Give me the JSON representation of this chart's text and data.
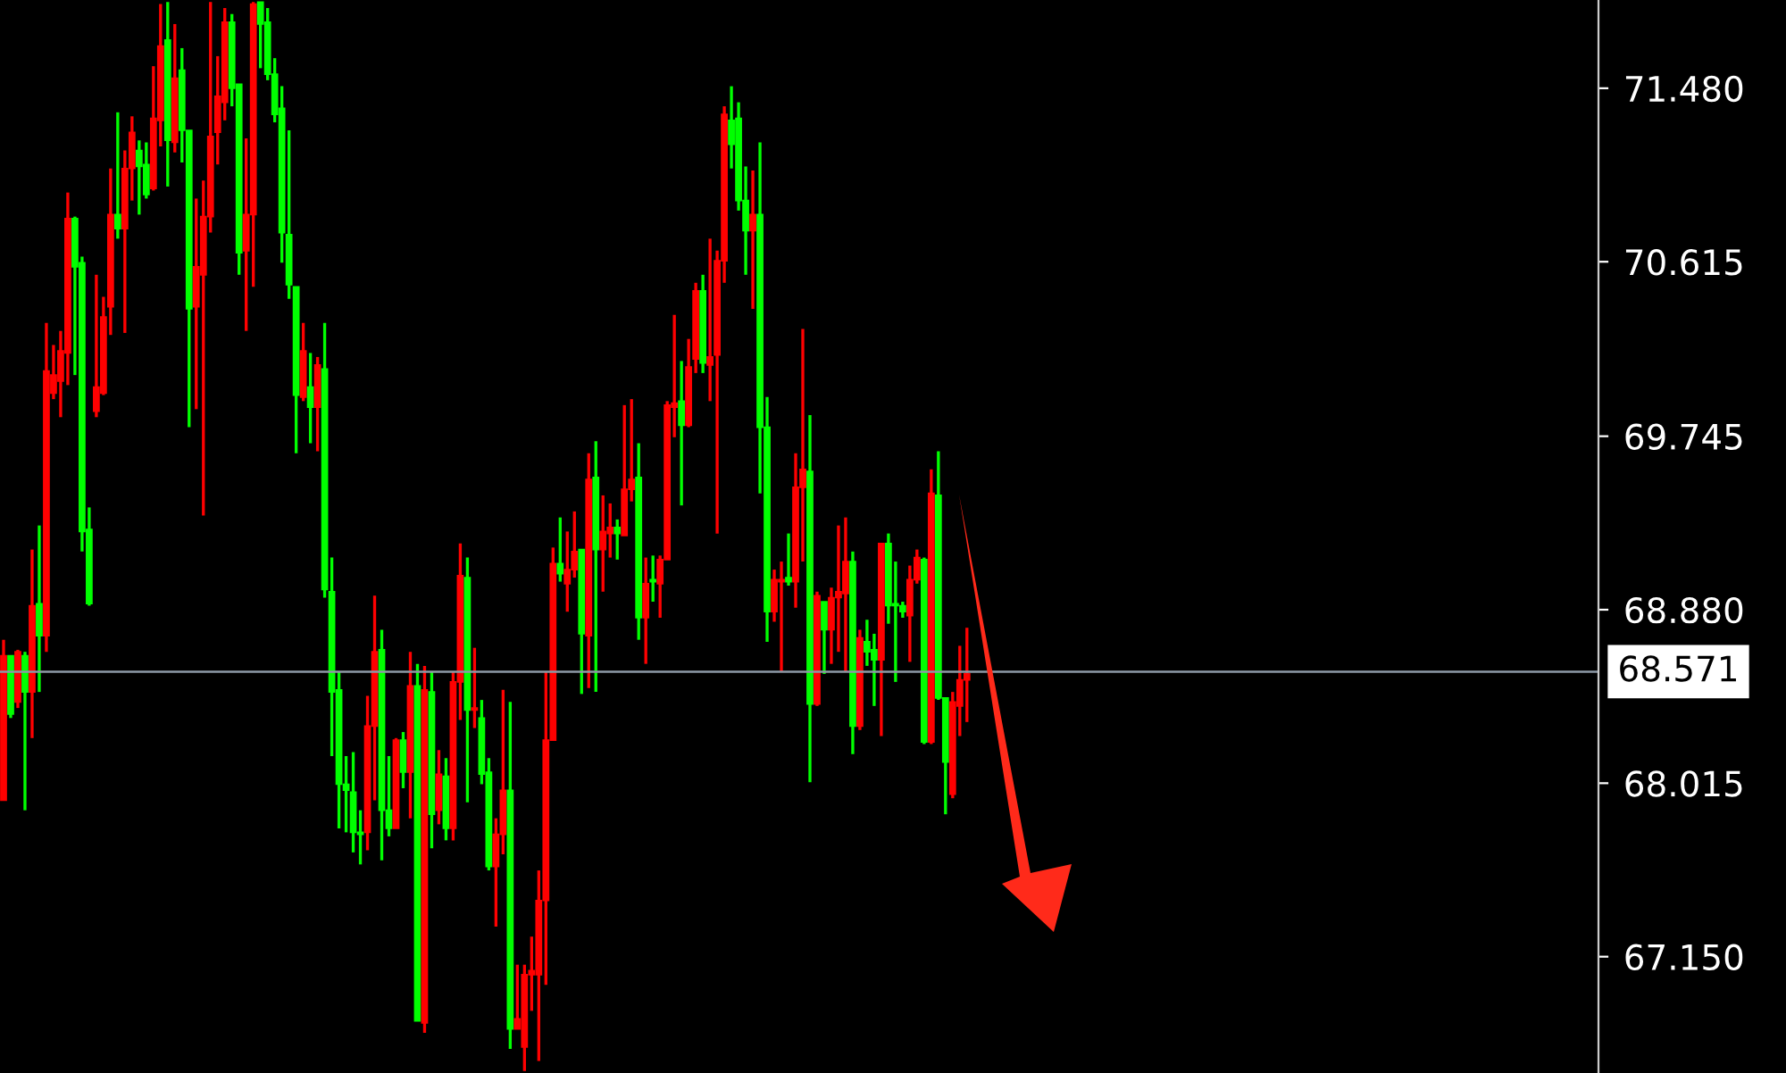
{
  "chart_data": {
    "type": "candlestick",
    "categories": [
      null,
      null,
      null,
      null,
      null,
      null,
      null,
      null,
      null,
      null,
      null,
      null,
      null,
      null,
      null,
      null,
      null,
      null,
      null,
      null,
      null,
      null,
      null,
      null,
      null,
      null,
      null,
      null,
      null,
      null,
      null,
      null,
      null,
      null,
      null,
      null,
      null,
      null,
      null,
      null,
      null,
      null,
      null,
      null,
      null,
      null,
      null,
      null,
      null,
      null,
      null,
      null,
      null,
      null,
      null,
      null,
      null,
      null,
      null,
      null,
      null,
      null,
      null,
      null,
      null,
      null,
      null,
      null,
      null,
      null,
      null,
      null,
      null,
      null,
      null,
      null,
      null,
      null,
      null,
      null,
      null,
      null,
      null,
      null,
      null,
      null,
      null,
      null,
      null,
      null,
      null,
      null,
      null,
      null,
      null,
      null,
      null,
      null,
      null,
      null,
      null,
      null,
      null,
      null,
      null,
      null,
      null,
      null,
      null,
      null,
      null,
      null,
      null,
      null,
      null,
      null,
      null,
      null,
      null,
      null,
      null,
      null,
      null,
      null,
      null,
      null,
      null,
      null,
      null,
      null,
      null,
      null,
      null,
      null,
      null,
      null,
      null,
      null,
      null,
      null,
      null,
      null,
      null,
      null,
      null,
      null,
      null,
      null,
      null,
      null,
      null,
      null,
      null,
      null,
      null,
      null,
      null,
      null,
      null,
      null,
      null,
      null,
      null,
      null,
      null,
      null,
      null,
      null,
      null,
      null,
      null,
      null,
      null,
      null,
      null,
      null,
      null,
      null,
      null,
      null,
      null,
      null,
      null,
      null,
      null,
      null,
      null,
      null,
      null,
      null,
      null,
      null,
      null,
      null,
      null,
      null,
      null,
      null,
      null,
      null,
      null,
      null,
      null,
      null,
      null,
      null,
      null,
      null,
      null,
      null,
      null,
      null,
      null,
      null,
      null,
      null,
      null,
      null,
      null,
      null,
      null,
      null,
      null,
      null
    ],
    "ohlc": [
      [
        67.93,
        68.73,
        67.93,
        68.65
      ],
      [
        68.65,
        68.65,
        68.34,
        68.36
      ],
      [
        68.42,
        68.68,
        68.39,
        68.67
      ],
      [
        68.65,
        68.67,
        67.88,
        68.47
      ],
      [
        68.47,
        69.18,
        68.24,
        68.9
      ],
      [
        68.91,
        69.3,
        68.47,
        68.75
      ],
      [
        68.75,
        70.31,
        68.67,
        70.07
      ],
      [
        69.96,
        70.2,
        69.93,
        70.05
      ],
      [
        70.02,
        70.27,
        69.84,
        70.17
      ],
      [
        70.16,
        70.96,
        70.0,
        70.83
      ],
      [
        70.83,
        70.84,
        70.05,
        70.59
      ],
      [
        70.61,
        70.64,
        69.17,
        69.27
      ],
      [
        69.28,
        69.39,
        68.9,
        68.91
      ],
      [
        69.87,
        70.55,
        69.84,
        69.99
      ],
      [
        69.96,
        70.44,
        69.95,
        70.34
      ],
      [
        70.39,
        71.08,
        70.25,
        70.85
      ],
      [
        70.85,
        71.36,
        70.73,
        70.78
      ],
      [
        70.78,
        71.17,
        70.26,
        71.08
      ],
      [
        71.08,
        71.34,
        70.92,
        71.26
      ],
      [
        71.17,
        71.22,
        70.85,
        71.09
      ],
      [
        71.1,
        71.21,
        70.93,
        70.95
      ],
      [
        70.98,
        71.59,
        70.97,
        71.33
      ],
      [
        71.32,
        71.9,
        71.19,
        71.69
      ],
      [
        71.72,
        71.91,
        70.99,
        71.22
      ],
      [
        71.21,
        71.8,
        71.16,
        71.53
      ],
      [
        71.57,
        71.68,
        71.11,
        71.27
      ],
      [
        71.27,
        71.27,
        69.79,
        70.38
      ],
      [
        70.39,
        70.93,
        69.88,
        70.59
      ],
      [
        70.55,
        71.02,
        69.35,
        70.84
      ],
      [
        70.84,
        71.91,
        70.76,
        71.24
      ],
      [
        71.26,
        71.64,
        71.1,
        71.44
      ],
      [
        71.41,
        71.88,
        71.32,
        71.81
      ],
      [
        71.81,
        71.85,
        71.39,
        71.48
      ],
      [
        71.5,
        71.5,
        70.55,
        70.66
      ],
      [
        70.67,
        71.23,
        70.27,
        70.85
      ],
      [
        70.85,
        71.91,
        70.49,
        71.9
      ],
      [
        71.91,
        71.91,
        71.58,
        71.8
      ],
      [
        71.81,
        71.88,
        71.52,
        71.55
      ],
      [
        71.55,
        71.63,
        71.31,
        71.35
      ],
      [
        71.38,
        71.49,
        70.61,
        70.76
      ],
      [
        70.75,
        71.27,
        70.43,
        70.5
      ],
      [
        70.49,
        70.49,
        69.66,
        69.95
      ],
      [
        69.94,
        70.31,
        69.92,
        70.17
      ],
      [
        69.99,
        70.16,
        69.71,
        69.89
      ],
      [
        69.89,
        70.14,
        69.67,
        70.1
      ],
      [
        70.08,
        70.31,
        68.94,
        68.98
      ],
      [
        68.97,
        69.14,
        68.15,
        68.47
      ],
      [
        68.48,
        68.57,
        67.79,
        68.01
      ],
      [
        68.01,
        68.15,
        67.77,
        67.98
      ],
      [
        67.97,
        68.17,
        67.67,
        67.77
      ],
      [
        67.77,
        67.88,
        67.61,
        67.76
      ],
      [
        67.77,
        68.45,
        67.68,
        68.3
      ],
      [
        68.3,
        68.95,
        67.93,
        68.67
      ],
      [
        68.68,
        68.78,
        67.63,
        67.88
      ],
      [
        67.88,
        68.15,
        67.75,
        67.79
      ],
      [
        67.79,
        68.24,
        67.79,
        68.23
      ],
      [
        68.23,
        68.27,
        67.99,
        68.07
      ],
      [
        68.07,
        68.67,
        67.84,
        68.5
      ],
      [
        68.5,
        68.61,
        66.83,
        66.83
      ],
      [
        66.82,
        68.6,
        66.77,
        68.48
      ],
      [
        68.47,
        68.57,
        67.69,
        67.86
      ],
      [
        67.88,
        68.18,
        67.81,
        68.06
      ],
      [
        68.05,
        68.14,
        67.73,
        67.79
      ],
      [
        67.79,
        68.57,
        67.73,
        68.52
      ],
      [
        68.52,
        69.21,
        68.33,
        69.05
      ],
      [
        69.04,
        69.14,
        67.92,
        68.38
      ],
      [
        68.38,
        68.69,
        68.29,
        68.39
      ],
      [
        68.34,
        68.43,
        68.01,
        68.06
      ],
      [
        68.07,
        68.14,
        67.58,
        67.6
      ],
      [
        67.6,
        67.84,
        67.3,
        67.76
      ],
      [
        67.76,
        68.48,
        67.66,
        67.98
      ],
      [
        67.98,
        68.42,
        66.69,
        66.79
      ],
      [
        66.79,
        67.11,
        66.79,
        66.84
      ],
      [
        66.7,
        67.11,
        66.58,
        67.06
      ],
      [
        67.06,
        67.25,
        66.88,
        67.08
      ],
      [
        67.06,
        67.58,
        66.63,
        67.43
      ],
      [
        67.43,
        68.57,
        67.01,
        68.23
      ],
      [
        68.23,
        69.19,
        68.23,
        69.11
      ],
      [
        69.11,
        69.34,
        69.02,
        69.06
      ],
      [
        69.01,
        69.27,
        68.87,
        69.08
      ],
      [
        69.08,
        69.37,
        69.04,
        69.17
      ],
      [
        69.18,
        69.18,
        68.46,
        68.76
      ],
      [
        68.75,
        69.66,
        68.49,
        69.53
      ],
      [
        69.54,
        69.72,
        68.47,
        69.18
      ],
      [
        69.18,
        69.45,
        68.97,
        69.27
      ],
      [
        69.26,
        69.41,
        69.14,
        69.29
      ],
      [
        69.29,
        69.33,
        69.13,
        69.26
      ],
      [
        69.25,
        69.9,
        69.25,
        69.48
      ],
      [
        69.48,
        69.93,
        69.42,
        69.53
      ],
      [
        69.54,
        69.71,
        68.73,
        68.84
      ],
      [
        68.84,
        69.14,
        68.61,
        69.01
      ],
      [
        69.03,
        69.15,
        68.92,
        69.02
      ],
      [
        69.01,
        69.15,
        68.84,
        69.13
      ],
      [
        69.13,
        69.92,
        69.13,
        69.9
      ],
      [
        69.89,
        70.35,
        69.74,
        69.91
      ],
      [
        69.92,
        70.12,
        69.4,
        69.8
      ],
      [
        69.8,
        70.23,
        69.79,
        70.09
      ],
      [
        70.13,
        70.51,
        70.06,
        70.47
      ],
      [
        70.47,
        70.55,
        70.06,
        70.11
      ],
      [
        70.1,
        70.73,
        69.92,
        70.14
      ],
      [
        70.15,
        70.67,
        69.26,
        70.62
      ],
      [
        70.62,
        71.39,
        70.51,
        71.35
      ],
      [
        71.32,
        71.49,
        71.08,
        71.2
      ],
      [
        71.33,
        71.41,
        70.87,
        70.92
      ],
      [
        70.92,
        71.09,
        70.55,
        70.77
      ],
      [
        70.77,
        71.07,
        70.38,
        70.85
      ],
      [
        70.85,
        71.21,
        69.46,
        69.79
      ],
      [
        69.79,
        69.94,
        68.72,
        68.87
      ],
      [
        68.87,
        69.08,
        68.82,
        69.03
      ],
      [
        69.02,
        69.12,
        68.57,
        69.03
      ],
      [
        69.04,
        69.26,
        69.0,
        69.02
      ],
      [
        69.02,
        69.66,
        68.89,
        69.49
      ],
      [
        69.49,
        70.28,
        69.12,
        69.58
      ],
      [
        69.57,
        69.85,
        68.02,
        68.41
      ],
      [
        68.41,
        68.97,
        68.4,
        68.95
      ],
      [
        68.92,
        68.92,
        68.56,
        68.78
      ],
      [
        68.78,
        68.99,
        68.61,
        68.94
      ],
      [
        68.94,
        69.3,
        68.67,
        68.97
      ],
      [
        68.96,
        69.34,
        68.57,
        69.12
      ],
      [
        69.12,
        69.17,
        68.16,
        68.3
      ],
      [
        68.3,
        68.78,
        68.28,
        68.74
      ],
      [
        68.72,
        68.83,
        68.6,
        68.67
      ],
      [
        68.68,
        68.76,
        68.4,
        68.63
      ],
      [
        68.63,
        69.21,
        68.25,
        69.21
      ],
      [
        69.21,
        69.26,
        68.81,
        68.9
      ],
      [
        68.91,
        69.12,
        68.52,
        68.9
      ],
      [
        68.9,
        68.92,
        68.84,
        68.87
      ],
      [
        68.85,
        69.1,
        68.62,
        69.03
      ],
      [
        69.03,
        69.18,
        69.01,
        69.14
      ],
      [
        69.13,
        69.14,
        68.21,
        68.22
      ],
      [
        68.22,
        69.58,
        68.21,
        69.46
      ],
      [
        69.45,
        69.67,
        68.43,
        68.44
      ],
      [
        68.44,
        68.44,
        67.86,
        68.12
      ],
      [
        67.96,
        68.47,
        67.94,
        68.42
      ],
      [
        68.4,
        68.7,
        68.25,
        68.53
      ],
      [
        68.53,
        68.79,
        68.32,
        68.56
      ],
      null,
      null,
      null,
      null,
      null,
      null,
      null,
      null,
      null,
      null,
      null,
      null,
      null,
      null,
      null,
      null,
      null,
      null,
      null,
      null,
      null,
      null,
      null,
      null,
      null,
      null,
      null,
      null,
      null,
      null,
      null,
      null,
      null,
      null,
      null,
      null,
      null,
      null,
      null,
      null,
      null,
      null,
      null,
      null,
      null,
      null,
      null,
      null,
      null,
      null,
      null,
      null,
      null,
      null,
      null,
      null,
      null,
      null,
      null,
      null,
      null,
      null,
      null,
      null,
      null,
      null,
      null,
      null,
      null,
      null,
      null,
      null,
      null,
      null,
      null,
      null,
      null,
      null,
      null,
      null,
      null,
      null,
      null,
      null,
      null,
      null,
      null,
      null
    ],
    "colors": [
      "#ff0000",
      "#00ff00",
      "#ff0000",
      "#00ff00",
      "#ff0000",
      "#00ff00",
      "#ff0000",
      "#ff0000",
      "#ff0000",
      "#ff0000",
      "#00ff00",
      "#00ff00",
      "#00ff00",
      "#ff0000",
      "#ff0000",
      "#ff0000",
      "#00ff00",
      "#ff0000",
      "#ff0000",
      "#00ff00",
      "#00ff00",
      "#ff0000",
      "#ff0000",
      "#00ff00",
      "#ff0000",
      "#00ff00",
      "#00ff00",
      "#ff0000",
      "#ff0000",
      "#ff0000",
      "#ff0000",
      "#ff0000",
      "#00ff00",
      "#00ff00",
      "#ff0000",
      "#ff0000",
      "#00ff00",
      "#00ff00",
      "#00ff00",
      "#00ff00",
      "#00ff00",
      "#00ff00",
      "#ff0000",
      "#00ff00",
      "#ff0000",
      "#00ff00",
      "#00ff00",
      "#00ff00",
      "#00ff00",
      "#00ff00",
      "#00ff00",
      "#ff0000",
      "#ff0000",
      "#00ff00",
      "#00ff00",
      "#ff0000",
      "#00ff00",
      "#ff0000",
      "#00ff00",
      "#ff0000",
      "#00ff00",
      "#ff0000",
      "#00ff00",
      "#ff0000",
      "#ff0000",
      "#00ff00",
      "#ff0000",
      "#00ff00",
      "#00ff00",
      "#ff0000",
      "#ff0000",
      "#00ff00",
      "#ff0000",
      "#ff0000",
      "#ff0000",
      "#ff0000",
      "#ff0000",
      "#ff0000",
      "#00ff00",
      "#ff0000",
      "#ff0000",
      "#00ff00",
      "#ff0000",
      "#00ff00",
      "#ff0000",
      "#ff0000",
      "#00ff00",
      "#ff0000",
      "#ff0000",
      "#00ff00",
      "#ff0000",
      "#00ff00",
      "#ff0000",
      "#ff0000",
      "#ff0000",
      "#00ff00",
      "#ff0000",
      "#ff0000",
      "#00ff00",
      "#ff0000",
      "#ff0000",
      "#ff0000",
      "#00ff00",
      "#00ff00",
      "#00ff00",
      "#ff0000",
      "#00ff00",
      "#00ff00",
      "#ff0000",
      "#ff0000",
      "#00ff00",
      "#ff0000",
      "#ff0000",
      "#00ff00",
      "#ff0000",
      "#00ff00",
      "#ff0000",
      "#ff0000",
      "#ff0000",
      "#00ff00",
      "#ff0000",
      "#00ff00",
      "#00ff00",
      "#ff0000",
      "#00ff00",
      "#00ff00",
      "#00ff00",
      "#ff0000",
      "#ff0000",
      "#00ff00",
      "#ff0000",
      "#00ff00",
      "#00ff00",
      "#ff0000",
      "#ff0000",
      "#ff0000",
      null,
      null,
      null,
      null,
      null,
      null,
      null,
      null,
      null,
      null,
      null,
      null,
      null,
      null,
      null,
      null,
      null,
      null,
      null,
      null,
      null,
      null,
      null,
      null,
      null,
      null,
      null,
      null,
      null,
      null,
      null,
      null,
      null,
      null,
      null,
      null,
      null,
      null,
      null,
      null,
      null,
      null,
      null,
      null,
      null,
      null,
      null,
      null,
      null,
      null,
      null,
      null,
      null,
      null,
      null,
      null,
      null,
      null,
      null,
      null,
      null,
      null,
      null,
      null,
      null,
      null,
      null,
      null,
      null,
      null,
      null,
      null,
      null,
      null,
      null,
      null,
      null,
      null,
      null,
      null,
      null,
      null,
      null,
      null,
      null,
      null,
      null,
      null
    ],
    "ylim": [
      66.57,
      71.92
    ],
    "yticks": [
      {
        "value": 67.15,
        "label": "67.150"
      },
      {
        "value": 68.015,
        "label": "68.015"
      },
      {
        "value": 68.88,
        "label": "68.880"
      },
      {
        "value": 69.745,
        "label": "69.745"
      },
      {
        "value": 70.615,
        "label": "70.615"
      },
      {
        "value": 71.48,
        "label": "71.480"
      }
    ],
    "ref_lines": [
      {
        "axis": "y",
        "value": 68.571,
        "label": "68.571",
        "color": "#8c99a6"
      }
    ],
    "grid": false,
    "legend": false
  }
}
